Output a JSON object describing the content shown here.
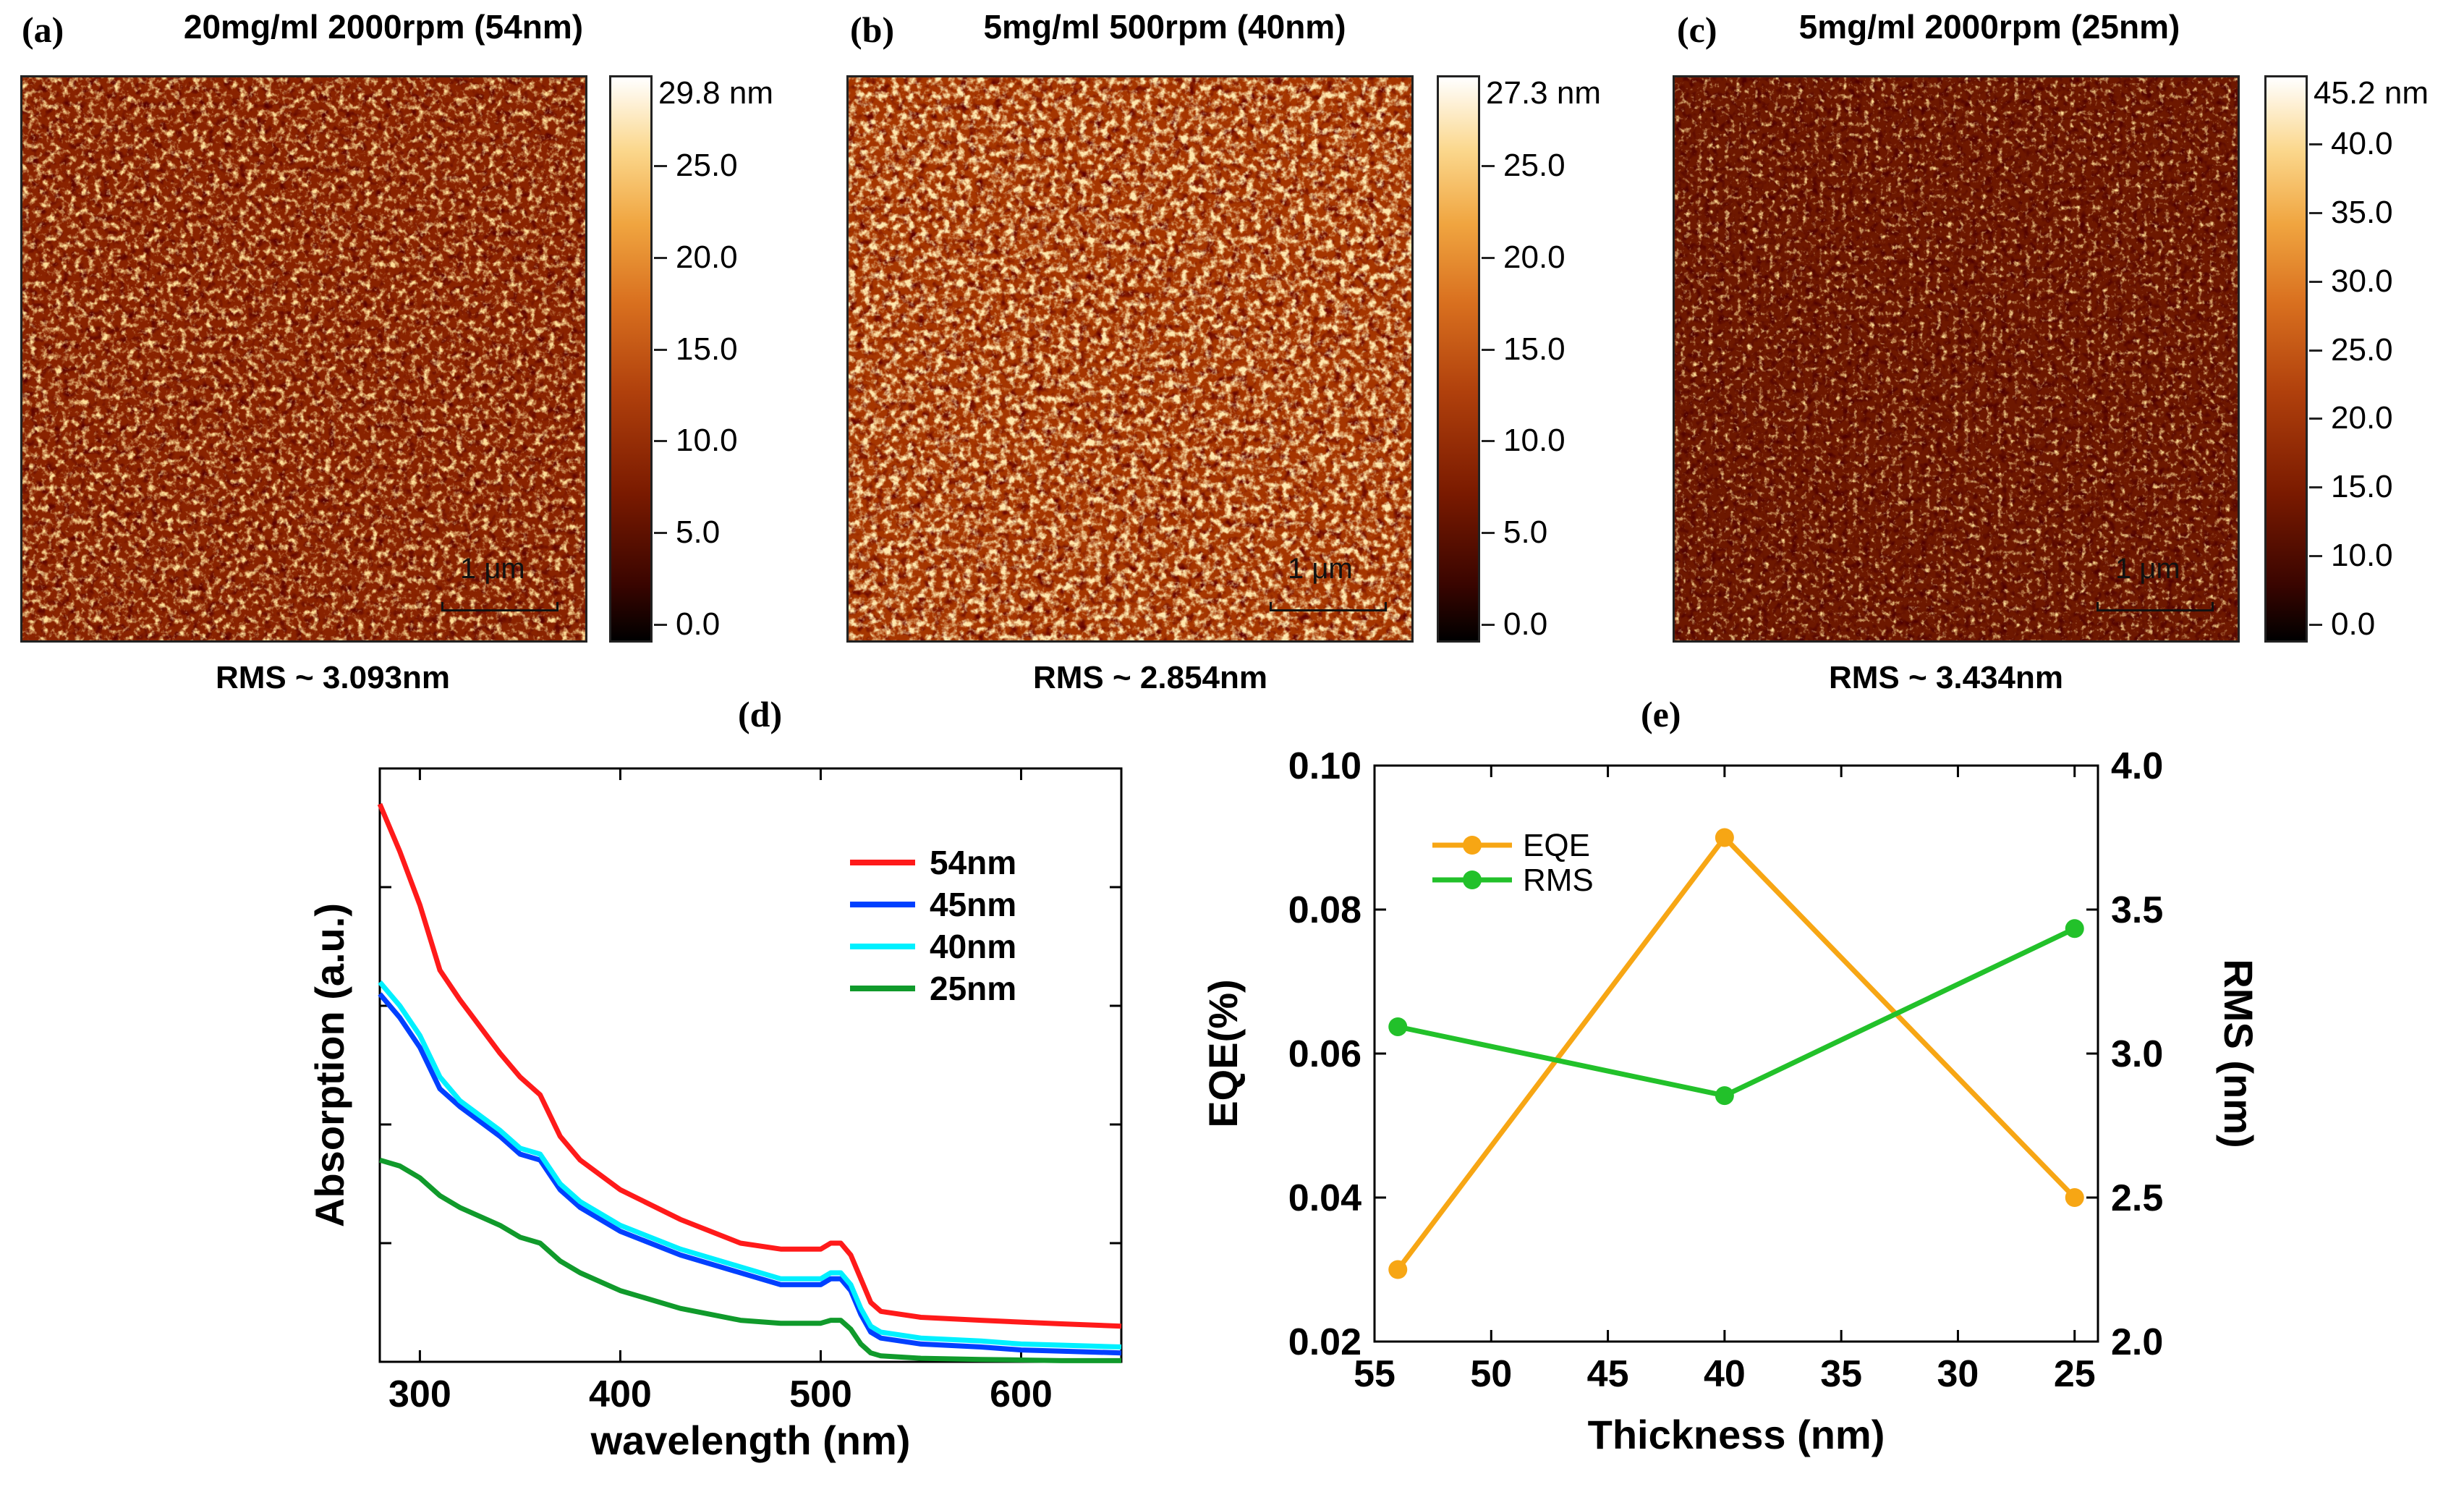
{
  "panels": [
    {
      "id": "a",
      "label": "(a)",
      "title": "20mg/ml 2000rpm (54nm)",
      "rms": "RMS ~ 3.093nm",
      "scale": "1 μm",
      "colorbar": {
        "max_label": "29.8 nm",
        "ticks": [
          "25.0",
          "20.0",
          "15.0",
          "10.0",
          "5.0",
          "0.0"
        ]
      },
      "texture": {
        "base": "#8a2300",
        "seed": 3
      }
    },
    {
      "id": "b",
      "label": "(b)",
      "title": "5mg/ml 500rpm (40nm)",
      "rms": "RMS ~ 2.854nm",
      "scale": "1 μm",
      "colorbar": {
        "max_label": "27.3 nm",
        "ticks": [
          "25.0",
          "20.0",
          "15.0",
          "10.0",
          "5.0",
          "0.0"
        ]
      },
      "texture": {
        "base": "#a63600",
        "seed": 11
      }
    },
    {
      "id": "c",
      "label": "(c)",
      "title": "5mg/ml 2000rpm (25nm)",
      "rms": "RMS ~ 3.434nm",
      "scale": "1 μm",
      "colorbar": {
        "max_label": "45.2 nm",
        "ticks": [
          "40.0",
          "35.0",
          "30.0",
          "25.0",
          "20.0",
          "15.0",
          "10.0",
          "0.0"
        ]
      },
      "texture": {
        "base": "#6e1800",
        "seed": 23
      }
    }
  ],
  "chart_data": [
    {
      "id": "d",
      "label": "(d)",
      "type": "line",
      "xlabel": "wavelength (nm)",
      "ylabel": "Absorption (a.u.)",
      "xlim": [
        280,
        650
      ],
      "ylim": [
        0,
        1
      ],
      "xticks": [
        300,
        400,
        500,
        600
      ],
      "series": [
        {
          "name": "54nm",
          "color": "#ff1a1a",
          "x": [
            280,
            290,
            300,
            310,
            320,
            340,
            350,
            360,
            370,
            380,
            400,
            430,
            460,
            480,
            500,
            505,
            510,
            515,
            520,
            525,
            530,
            550,
            580,
            600,
            620,
            650
          ],
          "y": [
            0.94,
            0.86,
            0.77,
            0.66,
            0.61,
            0.52,
            0.48,
            0.45,
            0.38,
            0.34,
            0.29,
            0.24,
            0.2,
            0.19,
            0.19,
            0.2,
            0.2,
            0.18,
            0.14,
            0.1,
            0.085,
            0.075,
            0.07,
            0.067,
            0.064,
            0.06
          ]
        },
        {
          "name": "45nm",
          "color": "#0040ff",
          "x": [
            280,
            290,
            300,
            310,
            320,
            340,
            350,
            360,
            370,
            380,
            400,
            430,
            460,
            480,
            500,
            505,
            510,
            515,
            520,
            525,
            530,
            550,
            580,
            600,
            620,
            650
          ],
          "y": [
            0.62,
            0.58,
            0.53,
            0.46,
            0.43,
            0.38,
            0.35,
            0.34,
            0.29,
            0.26,
            0.22,
            0.18,
            0.15,
            0.13,
            0.13,
            0.14,
            0.14,
            0.12,
            0.08,
            0.05,
            0.04,
            0.03,
            0.025,
            0.02,
            0.018,
            0.015
          ]
        },
        {
          "name": "40nm",
          "color": "#00f0ff",
          "x": [
            280,
            290,
            300,
            310,
            320,
            340,
            350,
            360,
            370,
            380,
            400,
            430,
            460,
            480,
            500,
            505,
            510,
            515,
            520,
            525,
            530,
            550,
            580,
            600,
            620,
            650
          ],
          "y": [
            0.64,
            0.6,
            0.55,
            0.48,
            0.44,
            0.39,
            0.36,
            0.35,
            0.3,
            0.27,
            0.23,
            0.19,
            0.16,
            0.14,
            0.14,
            0.15,
            0.15,
            0.13,
            0.09,
            0.06,
            0.05,
            0.04,
            0.035,
            0.03,
            0.028,
            0.025
          ]
        },
        {
          "name": "25nm",
          "color": "#109a2b",
          "x": [
            280,
            290,
            300,
            310,
            320,
            340,
            350,
            360,
            370,
            380,
            400,
            430,
            460,
            480,
            500,
            505,
            510,
            515,
            520,
            525,
            530,
            550,
            580,
            600,
            620,
            650
          ],
          "y": [
            0.34,
            0.33,
            0.31,
            0.28,
            0.26,
            0.23,
            0.21,
            0.2,
            0.17,
            0.15,
            0.12,
            0.09,
            0.07,
            0.065,
            0.065,
            0.07,
            0.07,
            0.055,
            0.03,
            0.015,
            0.01,
            0.006,
            0.004,
            0.003,
            0.002,
            0.002
          ]
        }
      ]
    },
    {
      "id": "e",
      "label": "(e)",
      "type": "line",
      "xlabel": "Thickness (nm)",
      "ylabel_left": "EQE(%)",
      "ylabel_right": "RMS (nm)",
      "xlim": [
        55,
        24
      ],
      "ylim_left": [
        0.02,
        0.1
      ],
      "ylim_right": [
        2.0,
        4.0
      ],
      "xticks": [
        55,
        50,
        45,
        40,
        35,
        30,
        25
      ],
      "yticks_left": [
        "0.02",
        "0.04",
        "0.06",
        "0.08",
        "0.10"
      ],
      "yticks_right": [
        "2.0",
        "2.5",
        "3.0",
        "3.5",
        "4.0"
      ],
      "series": [
        {
          "name": "EQE",
          "axis": "left",
          "color": "#f7a614",
          "x": [
            54,
            40,
            25
          ],
          "y": [
            0.03,
            0.09,
            0.04
          ]
        },
        {
          "name": "RMS",
          "axis": "right",
          "color": "#22c12a",
          "x": [
            54,
            40,
            25
          ],
          "y": [
            3.093,
            2.854,
            3.434
          ]
        }
      ]
    }
  ]
}
